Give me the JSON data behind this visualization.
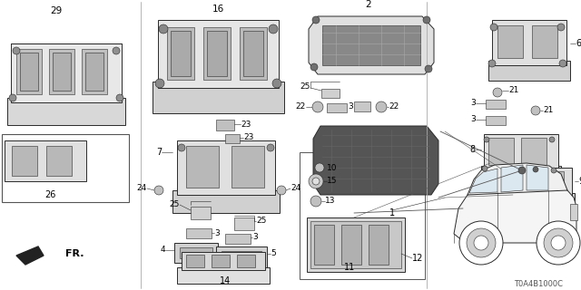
{
  "bg_color": "#ffffff",
  "diagram_code": "T0A4B1000C",
  "line_color": "#2a2a2a",
  "gray_dark": "#505050",
  "gray_mid": "#888888",
  "gray_light": "#c8c8c8",
  "gray_fill": "#e0e0e0",
  "white": "#ffffff"
}
